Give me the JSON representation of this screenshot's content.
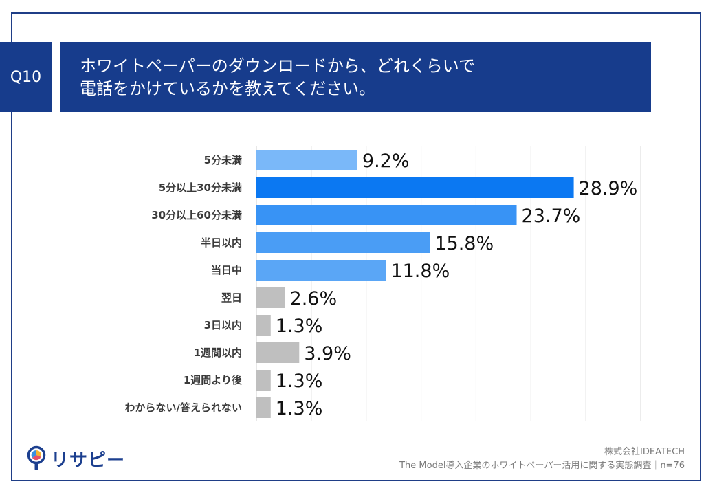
{
  "question": {
    "number": "Q10",
    "line1": "ホワイトペーパーのダウンロードから、どれくらいで",
    "line2": "電話をかけているかを教えてください。"
  },
  "chart_data": {
    "type": "bar",
    "orientation": "horizontal",
    "categories": [
      "5分未満",
      "5分以上30分未満",
      "30分以上60分未満",
      "半日以内",
      "当日中",
      "翌日",
      "3日以内",
      "1週間以内",
      "1週間より後",
      "わからない/答えられない"
    ],
    "values": [
      9.2,
      28.9,
      23.7,
      15.8,
      11.8,
      2.6,
      1.3,
      3.9,
      1.3,
      1.3
    ],
    "value_labels": [
      "9.2%",
      "28.9%",
      "23.7%",
      "15.8%",
      "11.8%",
      "2.6%",
      "1.3%",
      "3.9%",
      "1.3%",
      "1.3%"
    ],
    "bar_colors": [
      "#7ab8f9",
      "#0b78f2",
      "#3893f5",
      "#4a9df5",
      "#5aa6f6",
      "#bfbfbf",
      "#bfbfbf",
      "#bfbfbf",
      "#bfbfbf",
      "#bfbfbf"
    ],
    "xlim": [
      0,
      35
    ],
    "x_gridlines": [
      5,
      10,
      15,
      20,
      25,
      30,
      35
    ],
    "grid": true,
    "legend": "none"
  },
  "footer": {
    "company": "株式会社IDEATECH",
    "survey": "The Model導入企業のホワイトペーパー活用に関する実態調査｜n=76"
  },
  "logo": {
    "text": "リサピー",
    "icon": "lightbulb-pie-icon"
  },
  "colors": {
    "navy": "#173c8c",
    "frame": "#1f3e87"
  }
}
